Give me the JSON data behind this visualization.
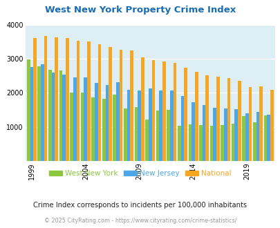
{
  "title": "West New York Property Crime Index",
  "years": [
    1999,
    2000,
    2001,
    2002,
    2003,
    2004,
    2005,
    2006,
    2007,
    2008,
    2009,
    2010,
    2011,
    2012,
    2013,
    2014,
    2015,
    2016,
    2017,
    2018,
    2019,
    2020,
    2021
  ],
  "west_new_york": [
    2980,
    2790,
    2680,
    2660,
    2010,
    2000,
    1860,
    1820,
    1950,
    1550,
    1580,
    1220,
    1480,
    1500,
    1030,
    1070,
    1050,
    1040,
    1060,
    1090,
    1320,
    1130,
    1340
  ],
  "new_jersey": [
    2760,
    2840,
    2600,
    2540,
    2450,
    2460,
    2300,
    2230,
    2310,
    2090,
    2080,
    2140,
    2080,
    2070,
    1910,
    1720,
    1640,
    1570,
    1540,
    1530,
    1390,
    1430,
    1350
  ],
  "national": [
    3610,
    3680,
    3640,
    3610,
    3530,
    3510,
    3440,
    3350,
    3280,
    3250,
    3040,
    2970,
    2920,
    2880,
    2740,
    2620,
    2510,
    2470,
    2440,
    2360,
    2180,
    2190,
    2100
  ],
  "colors": {
    "west_new_york": "#8dc63f",
    "new_jersey": "#4da6e8",
    "national": "#f5a623"
  },
  "ylim": [
    0,
    4000
  ],
  "yticks": [
    0,
    1000,
    2000,
    3000,
    4000
  ],
  "xtick_years": [
    1999,
    2004,
    2009,
    2014,
    2019
  ],
  "bg_color": "#deeef5",
  "title_color": "#1a6cb0",
  "subtitle": "Crime Index corresponds to incidents per 100,000 inhabitants",
  "footer": "© 2025 CityRating.com - https://www.cityrating.com/crime-statistics/",
  "legend_labels": [
    "West New York",
    "New Jersey",
    "National"
  ]
}
